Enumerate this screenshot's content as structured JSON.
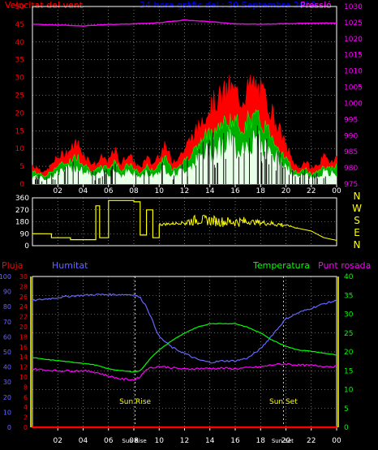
{
  "colors": {
    "background": "#000000",
    "axis": "#ffffff",
    "grid": "#bbbbbb",
    "wind_speed": "#ff0000",
    "wind_gust": "#ffffff",
    "wind_mid": "#00ff00",
    "pressure": "#ff00ff",
    "title": "#0000ff",
    "direction_line": "#ffff00",
    "humidity": "#6666ff",
    "rain": "#ff0000",
    "temperature": "#00ff00",
    "dewpoint": "#ff00ff",
    "sun_label": "#ffff00"
  },
  "chart_data": [
    {
      "type": "line",
      "id": "wind_pressure",
      "title": "24 hora gràfic del : 30 Septembre 2019",
      "left_label": "Velocitat del vent",
      "right_label": "Pressió",
      "x": {
        "ticks": [
          "02",
          "04",
          "06",
          "08",
          "10",
          "12",
          "14",
          "16",
          "18",
          "20",
          "22",
          "00"
        ],
        "tick_hours": [
          2,
          4,
          6,
          8,
          10,
          12,
          14,
          16,
          18,
          20,
          22,
          24
        ],
        "range": [
          0,
          24
        ]
      },
      "y_left": {
        "min": 0,
        "max": 50,
        "ticks": [
          0,
          5,
          10,
          15,
          20,
          25,
          30,
          35,
          40,
          45,
          50
        ]
      },
      "y_right": {
        "min": 975,
        "max": 1030,
        "ticks": [
          975,
          980,
          985,
          990,
          995,
          1000,
          1005,
          1010,
          1015,
          1020,
          1025,
          1030
        ]
      },
      "series": [
        {
          "name": "Velocitat del vent",
          "axis": "left",
          "x": [
            0,
            1,
            2,
            2.5,
            3,
            3.5,
            4,
            4.5,
            5,
            5.5,
            6,
            6.5,
            7,
            7.5,
            8,
            8.5,
            9,
            9.5,
            10,
            10.5,
            11,
            11.5,
            12,
            12.5,
            13,
            13.5,
            14,
            14.5,
            15,
            15.5,
            16,
            16.5,
            17,
            17.5,
            18,
            18.5,
            19,
            19.5,
            20,
            20.5,
            21,
            21.5,
            22,
            22.5,
            23,
            23.5,
            24
          ],
          "y": [
            5,
            3,
            7,
            8,
            9,
            11,
            8,
            6,
            5,
            7,
            6,
            9,
            5,
            8,
            6,
            4,
            7,
            5,
            8,
            10,
            6,
            7,
            9,
            12,
            14,
            18,
            20,
            22,
            23,
            25,
            24,
            22,
            25,
            26,
            24,
            22,
            18,
            14,
            10,
            6,
            4,
            6,
            4,
            5,
            7,
            6,
            7
          ]
        },
        {
          "name": "Pressió",
          "axis": "right",
          "x": [
            0,
            2,
            4,
            6,
            8,
            10,
            12,
            14,
            16,
            18,
            20,
            22,
            24
          ],
          "y": [
            1024.5,
            1024.3,
            1024,
            1024.4,
            1024.6,
            1025,
            1025.8,
            1025.3,
            1024.6,
            1024.5,
            1024.7,
            1024.8,
            1024.9
          ]
        }
      ]
    },
    {
      "type": "line",
      "id": "wind_direction",
      "right_labels": [
        "N",
        "W",
        "S",
        "E",
        "N"
      ],
      "x": {
        "range": [
          0,
          24
        ]
      },
      "y": {
        "min": 0,
        "max": 360,
        "ticks": [
          0,
          90,
          180,
          270,
          360
        ]
      },
      "series": [
        {
          "name": "Direcció",
          "x": [
            0,
            1.5,
            3,
            4.5,
            5,
            5.3,
            6,
            8,
            8.5,
            9,
            9.5,
            10,
            11,
            12,
            13,
            14,
            15,
            16,
            17,
            18,
            19,
            20,
            21,
            22,
            23,
            24
          ],
          "y": [
            90,
            60,
            45,
            45,
            300,
            60,
            340,
            330,
            80,
            270,
            60,
            160,
            165,
            175,
            195,
            190,
            180,
            180,
            180,
            175,
            165,
            155,
            130,
            110,
            60,
            40
          ]
        }
      ]
    },
    {
      "type": "line",
      "id": "humidity_temp",
      "labels": {
        "rain": "Pluja",
        "humidity": "Humitat",
        "temperature": "Temperatura",
        "dewpoint": "Punt rosada"
      },
      "x": {
        "ticks": [
          "02",
          "04",
          "06",
          "08",
          "10",
          "12",
          "14",
          "16",
          "18",
          "20",
          "22",
          "00"
        ],
        "tick_hours": [
          2,
          4,
          6,
          8,
          10,
          12,
          14,
          16,
          18,
          20,
          22,
          24
        ],
        "range": [
          0,
          24
        ]
      },
      "y_humidity": {
        "min": 0,
        "max": 100,
        "ticks": [
          0,
          10,
          20,
          30,
          40,
          50,
          60,
          70,
          80,
          90,
          100
        ]
      },
      "y_rain": {
        "min": 0,
        "max": 30,
        "ticks": [
          0,
          2,
          4,
          6,
          8,
          10,
          12,
          14,
          16,
          18,
          20,
          22,
          24,
          26,
          28,
          30
        ]
      },
      "y_temp": {
        "min": 0,
        "max": 40,
        "ticks": [
          0,
          5,
          10,
          15,
          20,
          25,
          30,
          35,
          40
        ]
      },
      "annotations": [
        {
          "label": "Sun Rise",
          "x": 8.1
        },
        {
          "label": "Sun Set",
          "x": 19.8
        }
      ],
      "series": [
        {
          "name": "Humitat",
          "axis": "humidity",
          "x": [
            0,
            1,
            2,
            3,
            4,
            5,
            6,
            7,
            8,
            8.5,
            9,
            9.5,
            10,
            11,
            12,
            13,
            14,
            15,
            16,
            17,
            18,
            19,
            20,
            21,
            22,
            23,
            24
          ],
          "y": [
            84,
            85,
            86,
            87,
            87.5,
            88,
            88,
            88,
            88,
            86,
            80,
            70,
            60,
            53,
            49,
            45,
            43,
            44,
            44,
            46,
            52,
            62,
            72,
            76,
            79,
            82,
            84
          ]
        },
        {
          "name": "Temperatura",
          "axis": "temp",
          "x": [
            0,
            1,
            2,
            3,
            4,
            5,
            6,
            7,
            8,
            8.5,
            9,
            9.5,
            10,
            11,
            12,
            13,
            14,
            15,
            16,
            17,
            18,
            19,
            20,
            21,
            22,
            23,
            24
          ],
          "y": [
            18.5,
            18,
            17.7,
            17.3,
            17,
            16.5,
            15.5,
            15,
            14.7,
            15,
            17,
            19,
            20.5,
            23,
            25,
            26.5,
            27.5,
            27.5,
            27.5,
            26.5,
            25,
            23,
            21.5,
            20.5,
            20.2,
            19.6,
            19.2
          ]
        },
        {
          "name": "Punt rosada",
          "axis": "temp",
          "x": [
            0,
            1,
            2,
            3,
            4,
            5,
            6,
            7,
            8,
            8.5,
            9,
            10,
            11,
            12,
            13,
            14,
            15,
            16,
            17,
            18,
            19,
            20,
            21,
            22,
            23,
            24
          ],
          "y": [
            15.5,
            15.2,
            15,
            15,
            15,
            14.6,
            13.6,
            12.8,
            12.6,
            13.4,
            15.5,
            16.2,
            15.8,
            15.4,
            15.6,
            15.6,
            15.7,
            15.5,
            15.8,
            16.0,
            16.6,
            16.8,
            16.5,
            16.4,
            16.2,
            16.1
          ]
        },
        {
          "name": "Pluja",
          "axis": "rain",
          "x": [
            0,
            24
          ],
          "y": [
            0,
            0
          ]
        }
      ]
    }
  ]
}
